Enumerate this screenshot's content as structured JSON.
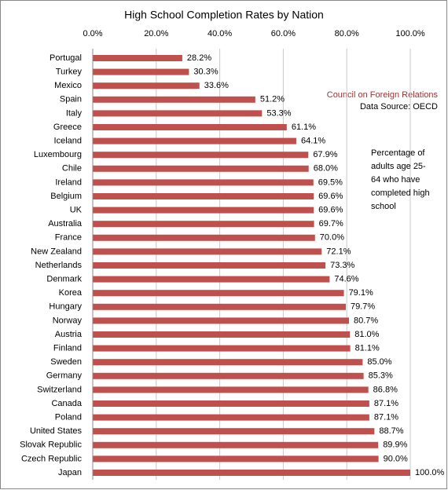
{
  "chart_data": {
    "type": "bar",
    "orientation": "horizontal",
    "title": "High School Completion Rates by Nation",
    "categories": [
      "Portugal",
      "Turkey",
      "Mexico",
      "Spain",
      "Italy",
      "Greece",
      "Iceland",
      "Luxembourg",
      "Chile",
      "Ireland",
      "Belgium",
      "UK",
      "Australia",
      "France",
      "New Zealand",
      "Netherlands",
      "Denmark",
      "Korea",
      "Hungary",
      "Norway",
      "Austria",
      "Finland",
      "Sweden",
      "Germany",
      "Switzerland",
      "Canada",
      "Poland",
      "United States",
      "Slovak Republic",
      "Czech Republic",
      "Japan"
    ],
    "values": [
      28.2,
      30.3,
      33.6,
      51.2,
      53.3,
      61.1,
      64.1,
      67.9,
      68.0,
      69.5,
      69.6,
      69.6,
      69.7,
      70.0,
      72.1,
      73.3,
      74.6,
      79.1,
      79.7,
      80.7,
      81.0,
      81.1,
      85.0,
      85.3,
      86.8,
      87.1,
      87.1,
      88.7,
      89.9,
      90.0,
      100.0
    ],
    "value_labels": [
      "28.2%",
      "30.3%",
      "33.6%",
      "51.2%",
      "53.3%",
      "61.1%",
      "64.1%",
      "67.9%",
      "68.0%",
      "69.5%",
      "69.6%",
      "69.6%",
      "69.7%",
      "70.0%",
      "72.1%",
      "73.3%",
      "74.6%",
      "79.1%",
      "79.7%",
      "80.7%",
      "81.0%",
      "81.1%",
      "85.0%",
      "85.3%",
      "86.8%",
      "87.1%",
      "87.1%",
      "88.7%",
      "89.9%",
      "90.0%",
      "100.0%"
    ],
    "color": "#c0504d",
    "xlim": [
      0,
      100
    ],
    "xticks": [
      {
        "value": 0,
        "label": "0.0%"
      },
      {
        "value": 20,
        "label": "20.0%"
      },
      {
        "value": 40,
        "label": "40.0%"
      },
      {
        "value": 60,
        "label": "60.0%"
      },
      {
        "value": 80,
        "label": "80.0%"
      },
      {
        "value": 100,
        "label": "100.0%"
      }
    ],
    "grid": true,
    "source_org": "Council on Foreign Relations",
    "source": "Data Source: OECD",
    "note_lines": [
      "Percentage of",
      "adults age 25-",
      "64 who have",
      "completed high",
      "school"
    ]
  }
}
